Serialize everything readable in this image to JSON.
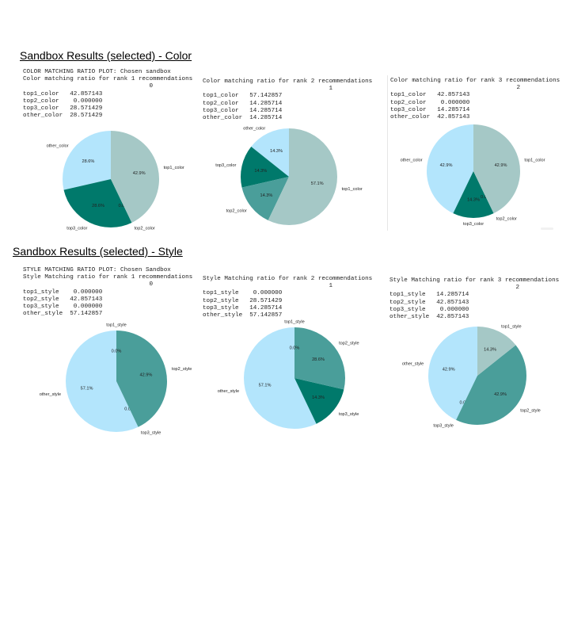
{
  "sections": [
    {
      "heading": "Sandbox Results (selected) - Color",
      "panels": [
        {
          "text": "COLOR MATCHING RATIO PLOT: Chosen sandbox\nColor matching ratio for rank 1 recommendations\n                                   0\ntop1_color   42.857143\ntop2_color    0.000000\ntop3_color   28.571429\nother_color  28.571429",
          "chart": {
            "type": "pie",
            "labels": [
              "other_color",
              "top3_color",
              "top2_color",
              "top1_color"
            ],
            "values": [
              28.6,
              28.6,
              0.0,
              42.9
            ],
            "pct_labels": [
              "28.6%",
              "28.6%",
              "0.0%",
              "42.9%"
            ],
            "colors": [
              "#b3e5fc",
              "#00796b",
              "#4a9e9a",
              "#a5c8c6"
            ]
          }
        },
        {
          "text": "Color matching ratio for rank 2 recommendations\n                                   1\ntop1_color   57.142857\ntop2_color   14.285714\ntop3_color   14.285714\nother_color  14.285714",
          "chart": {
            "type": "pie",
            "labels": [
              "other_color",
              "top3_color",
              "top2_color",
              "top1_color"
            ],
            "values": [
              14.3,
              14.3,
              14.3,
              57.1
            ],
            "pct_labels": [
              "14.3%",
              "14.3%",
              "14.3%",
              "57.1%"
            ],
            "colors": [
              "#b3e5fc",
              "#00796b",
              "#4a9e9a",
              "#a5c8c6"
            ]
          }
        },
        {
          "text": "Color matching ratio for rank 3 recommendations\n                                   2\ntop1_color   42.857143\ntop2_color    0.000000\ntop3_color   14.285714\nother_color  42.857143",
          "chart": {
            "type": "pie",
            "labels": [
              "other_color",
              "top3_color",
              "top2_color",
              "top1_color"
            ],
            "values": [
              42.9,
              14.3,
              0.0,
              42.9
            ],
            "pct_labels": [
              "42.9%",
              "14.3%",
              "0.0%",
              "42.9%"
            ],
            "colors": [
              "#b3e5fc",
              "#00796b",
              "#4a9e9a",
              "#a5c8c6"
            ]
          }
        }
      ]
    },
    {
      "heading": "Sandbox Results (selected) - Style",
      "panels": [
        {
          "text": "STYLE MATCHING RATIO PLOT: Chosen Sandbox\nStyle Matching ratio for rank 1 recommendations\n                                   0\ntop1_style    0.000000\ntop2_style   42.857143\ntop3_style    0.000000\nother_style  57.142857",
          "chart": {
            "type": "pie",
            "labels": [
              "other_style",
              "top3_style",
              "top2_style",
              "top1_style"
            ],
            "values": [
              57.1,
              0.0,
              42.9,
              0.0
            ],
            "pct_labels": [
              "57.1%",
              "0.0%",
              "42.9%",
              "0.0%"
            ],
            "colors": [
              "#b3e5fc",
              "#00796b",
              "#4a9e9a",
              "#a5c8c6"
            ]
          }
        },
        {
          "text": "Style Matching ratio for rank 2 recommendations\n                                   1\ntop1_style    0.000000\ntop2_style   28.571429\ntop3_style   14.285714\nother_style  57.142857",
          "chart": {
            "type": "pie",
            "labels": [
              "other_style",
              "top3_style",
              "top2_style",
              "top1_style"
            ],
            "values": [
              57.1,
              14.3,
              28.6,
              0.0
            ],
            "pct_labels": [
              "57.1%",
              "14.3%",
              "28.6%",
              "0.0%"
            ],
            "colors": [
              "#b3e5fc",
              "#00796b",
              "#4a9e9a",
              "#a5c8c6"
            ]
          }
        },
        {
          "text": "Style Matching ratio for rank 3 recommendations\n                                   2\ntop1_style   14.285714\ntop2_style   42.857143\ntop3_style    0.000000\nother_style  42.857143",
          "chart": {
            "type": "pie",
            "labels": [
              "other_style",
              "top3_style",
              "top2_style",
              "top1_style"
            ],
            "values": [
              42.9,
              0.0,
              42.9,
              14.3
            ],
            "pct_labels": [
              "42.9%",
              "0.0%",
              "42.9%",
              "14.3%"
            ],
            "colors": [
              "#b3e5fc",
              "#00796b",
              "#4a9e9a",
              "#a5c8c6"
            ]
          }
        }
      ]
    }
  ],
  "chart_data": [
    {
      "type": "pie",
      "labels": [
        "top1_color",
        "top2_color",
        "top3_color",
        "other_color"
      ],
      "values": [
        42.857143,
        0.0,
        28.571429,
        28.571429
      ]
    },
    {
      "type": "pie",
      "labels": [
        "top1_color",
        "top2_color",
        "top3_color",
        "other_color"
      ],
      "values": [
        57.142857,
        14.285714,
        14.285714,
        14.285714
      ]
    },
    {
      "type": "pie",
      "labels": [
        "top1_color",
        "top2_color",
        "top3_color",
        "other_color"
      ],
      "values": [
        42.857143,
        0.0,
        14.285714,
        42.857143
      ]
    },
    {
      "type": "pie",
      "labels": [
        "top1_style",
        "top2_style",
        "top3_style",
        "other_style"
      ],
      "values": [
        0.0,
        42.857143,
        0.0,
        57.142857
      ]
    },
    {
      "type": "pie",
      "labels": [
        "top1_style",
        "top2_style",
        "top3_style",
        "other_style"
      ],
      "values": [
        0.0,
        28.571429,
        14.285714,
        57.142857
      ]
    },
    {
      "type": "pie",
      "labels": [
        "top1_style",
        "top2_style",
        "top3_style",
        "other_style"
      ],
      "values": [
        14.285714,
        42.857143,
        0.0,
        42.857143
      ]
    }
  ]
}
